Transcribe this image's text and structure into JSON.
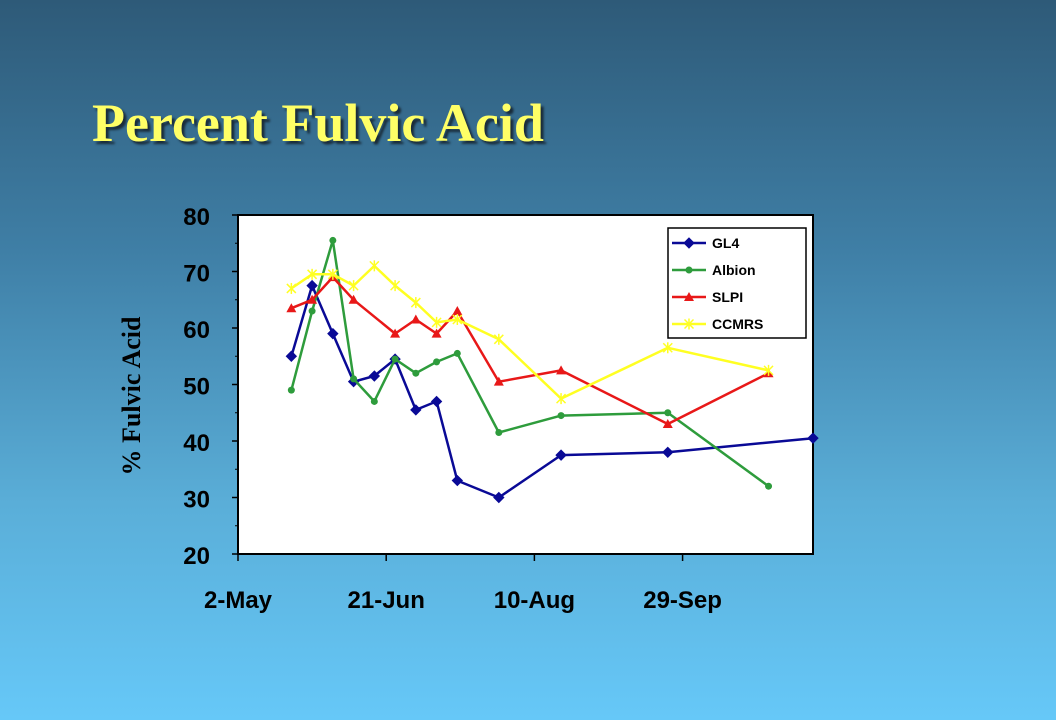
{
  "slide": {
    "title": "Percent Fulvic Acid"
  },
  "chart_data": {
    "type": "line",
    "xlabel": "",
    "ylabel": "% Fulvic Acid",
    "ylim": [
      20,
      80
    ],
    "yticks": [
      20,
      30,
      40,
      50,
      60,
      70,
      80
    ],
    "xlim": [
      "2010-05-02",
      "2010-11-12"
    ],
    "xticks": [
      {
        "date": "2010-05-02",
        "label": "2-May"
      },
      {
        "date": "2010-06-21",
        "label": "21-Jun"
      },
      {
        "date": "2010-08-10",
        "label": "10-Aug"
      },
      {
        "date": "2010-09-29",
        "label": "29-Sep"
      }
    ],
    "grid": false,
    "legend_position": "top-right",
    "series": [
      {
        "name": "GL4",
        "color": "#0a0a96",
        "marker": "diamond",
        "x": [
          "2010-05-20",
          "2010-05-27",
          "2010-06-03",
          "2010-06-10",
          "2010-06-17",
          "2010-06-24",
          "2010-07-01",
          "2010-07-08",
          "2010-07-15",
          "2010-07-29",
          "2010-08-19",
          "2010-09-24",
          "2010-11-12"
        ],
        "y": [
          55,
          67.5,
          59,
          50.5,
          51.5,
          54.5,
          45.5,
          47,
          33,
          30,
          37.5,
          38,
          40.5
        ]
      },
      {
        "name": "Albion",
        "color": "#2e9c3c",
        "marker": "circle",
        "x": [
          "2010-05-20",
          "2010-05-27",
          "2010-06-03",
          "2010-06-10",
          "2010-06-17",
          "2010-06-24",
          "2010-07-01",
          "2010-07-08",
          "2010-07-15",
          "2010-07-29",
          "2010-08-19",
          "2010-09-24",
          "2010-10-28"
        ],
        "y": [
          49,
          63,
          75.5,
          51,
          47,
          54.5,
          52,
          54,
          55.5,
          41.5,
          44.5,
          45,
          32
        ]
      },
      {
        "name": "SLPI",
        "color": "#e81818",
        "marker": "triangle",
        "x": [
          "2010-05-20",
          "2010-05-27",
          "2010-06-03",
          "2010-06-10",
          "2010-06-24",
          "2010-07-01",
          "2010-07-08",
          "2010-07-15",
          "2010-07-29",
          "2010-08-19",
          "2010-09-24",
          "2010-10-28"
        ],
        "y": [
          63.5,
          65,
          69,
          65,
          59,
          61.5,
          59,
          63,
          50.5,
          52.5,
          43,
          52
        ]
      },
      {
        "name": "CCMRS",
        "color": "#ffff22",
        "marker": "star",
        "x": [
          "2010-05-20",
          "2010-05-27",
          "2010-06-03",
          "2010-06-10",
          "2010-06-17",
          "2010-06-24",
          "2010-07-01",
          "2010-07-08",
          "2010-07-15",
          "2010-07-29",
          "2010-08-19",
          "2010-09-24",
          "2010-10-28"
        ],
        "y": [
          67,
          69.5,
          69.5,
          67.5,
          71,
          67.5,
          64.5,
          61,
          61.5,
          58,
          47.5,
          56.5,
          52.5
        ]
      }
    ]
  }
}
